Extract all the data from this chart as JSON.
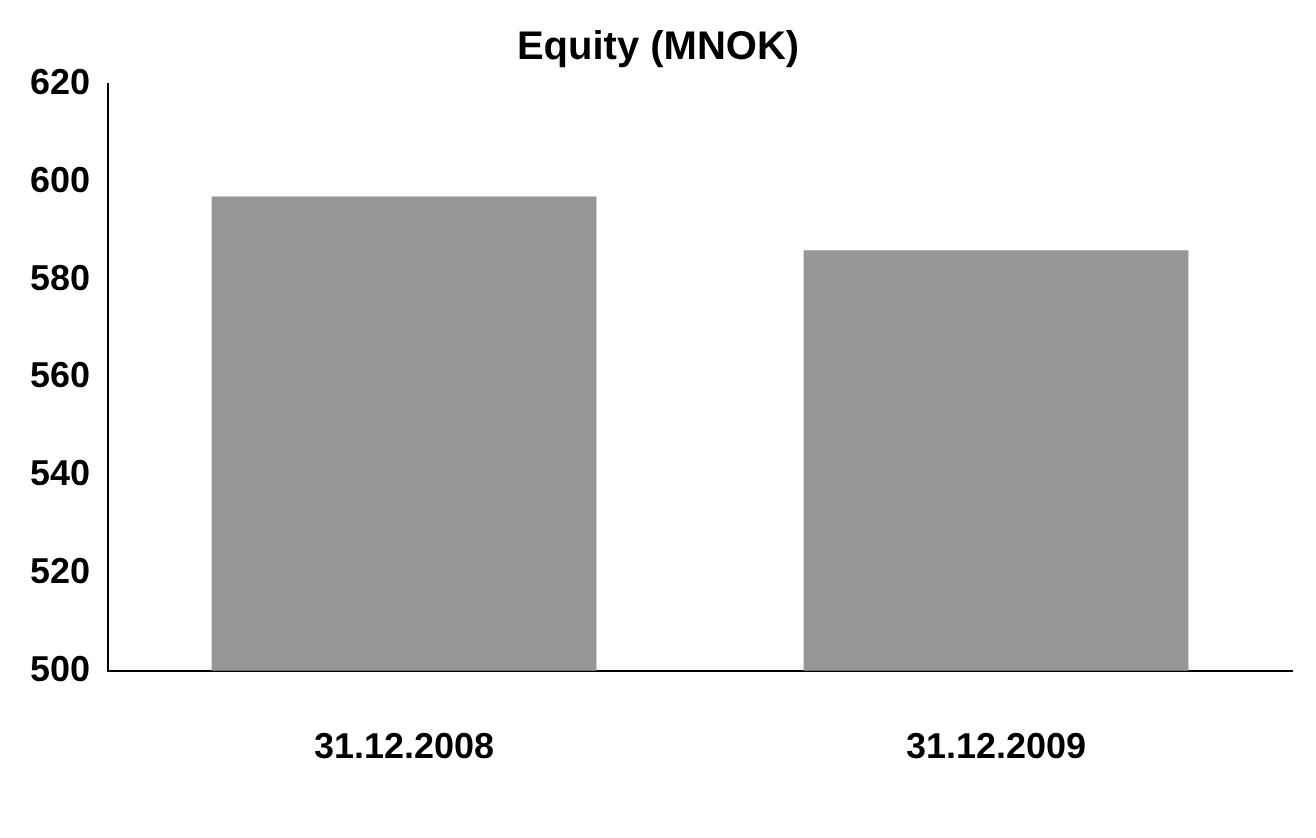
{
  "chart_data": {
    "type": "bar",
    "title": "Equity (MNOK)",
    "categories": [
      "31.12.2008",
      "31.12.2009"
    ],
    "values": [
      597,
      586
    ],
    "color": "#969696",
    "ylim": [
      500,
      620
    ],
    "yticks": [
      500,
      520,
      540,
      560,
      580,
      600,
      620
    ],
    "grid": false,
    "legend": false
  }
}
